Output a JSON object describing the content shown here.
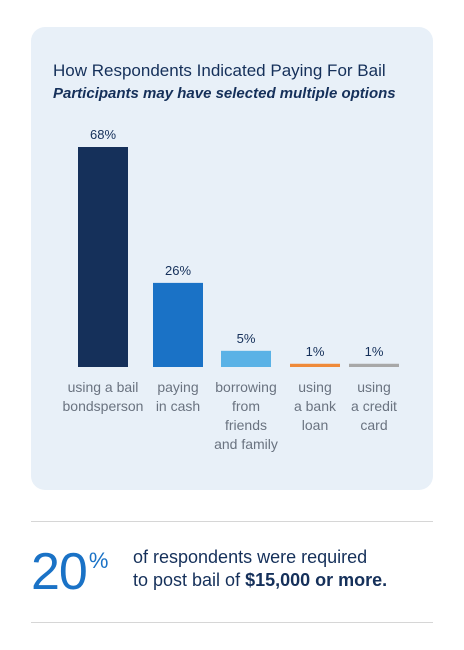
{
  "chart_data": {
    "type": "bar",
    "title": "How Respondents Indicated Paying For Bail",
    "subtitle": "Participants may have selected multiple options",
    "unit": "%",
    "ylim": [
      0,
      68
    ],
    "grid": false,
    "legend": "none",
    "bars": [
      {
        "label_lines": [
          "using a bail",
          "bondsperson"
        ],
        "value": 68,
        "display": "68%",
        "color": "#15305a"
      },
      {
        "label_lines": [
          "paying",
          "in cash"
        ],
        "value": 26,
        "display": "26%",
        "color": "#1a72c6"
      },
      {
        "label_lines": [
          "borrowing",
          "from",
          "friends",
          "and family"
        ],
        "value": 5,
        "display": "5%",
        "color": "#5ab2e6"
      },
      {
        "label_lines": [
          "using",
          "a bank",
          "loan"
        ],
        "value": 1,
        "display": "1%",
        "color": "#ef8a3a"
      },
      {
        "label_lines": [
          "using",
          "a credit",
          "card"
        ],
        "value": 1,
        "display": "1%",
        "color": "#a8a8a8"
      }
    ]
  },
  "stat": {
    "number": "20",
    "unit": "%",
    "line1": "of respondents were required",
    "line2_prefix": "to post bail of ",
    "line2_emphasis": "$15,000 or more."
  }
}
